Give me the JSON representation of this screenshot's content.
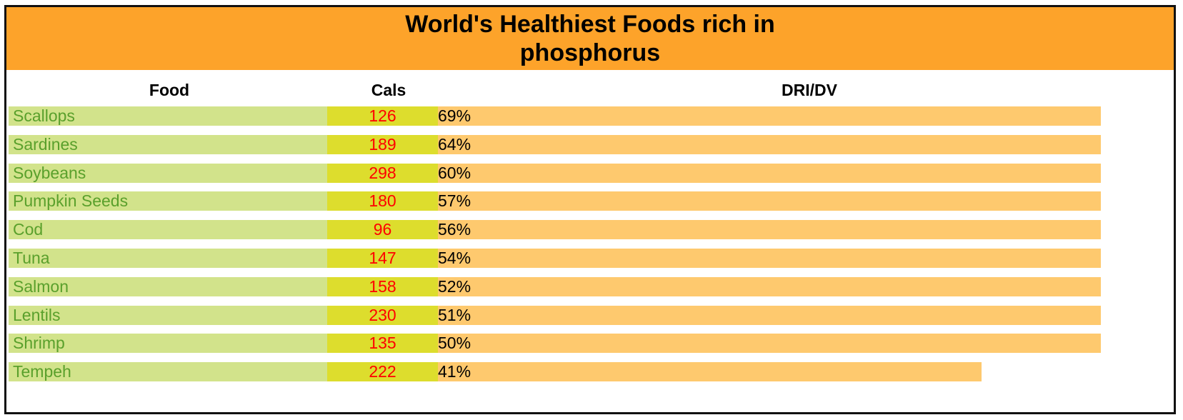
{
  "title": "World's Healthiest Foods rich in phosphorus",
  "colors": {
    "title_bar": "#fda32a",
    "food_cell": "#d2e38b",
    "food_text": "#5aa02c",
    "cals_cell": "#dddd2d",
    "cals_text": "#ff0000",
    "bar": "#fec96e"
  },
  "headers": {
    "food": "Food",
    "cals": "Cals",
    "dri": "DRI/DV"
  },
  "chart_data": {
    "type": "bar",
    "title": "World's Healthiest Foods rich in phosphorus",
    "categories": [
      "Scallops",
      "Sardines",
      "Soybeans",
      "Pumpkin Seeds",
      "Cod",
      "Tuna",
      "Salmon",
      "Lentils",
      "Shrimp",
      "Tempeh"
    ],
    "cals": [
      126,
      189,
      298,
      180,
      96,
      147,
      158,
      230,
      135,
      222
    ],
    "values": [
      69,
      64,
      60,
      57,
      56,
      54,
      52,
      51,
      50,
      41
    ],
    "value_labels": [
      "69%",
      "64%",
      "60%",
      "57%",
      "56%",
      "54%",
      "52%",
      "51%",
      "50%",
      "41%"
    ],
    "bar_cap": 50
  }
}
